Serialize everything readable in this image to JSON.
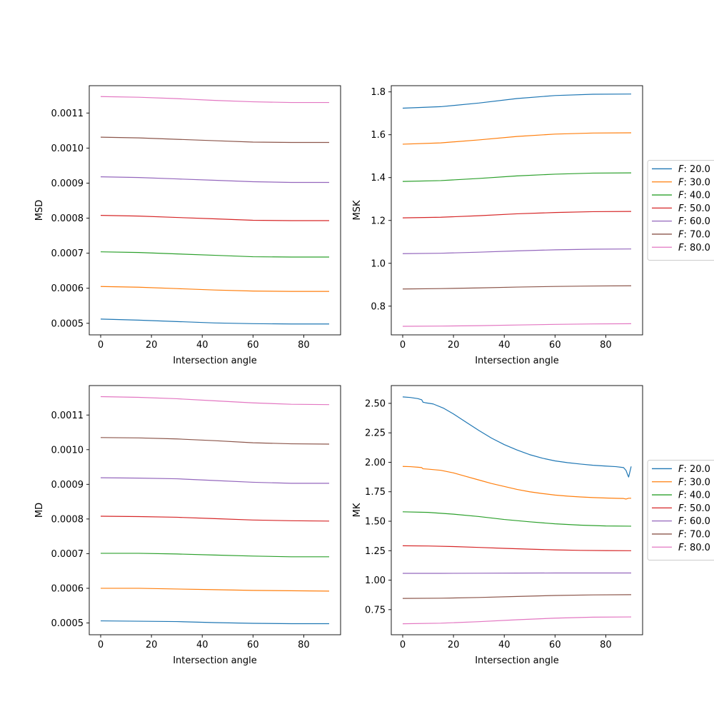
{
  "figure": {
    "background": "#ffffff"
  },
  "chart_data": [
    {
      "id": "msd",
      "type": "line",
      "title": "",
      "xlabel": "Intersection angle",
      "ylabel": "MSD",
      "xlim": [
        -4.5,
        94.5
      ],
      "ylim": [
        0.000467,
        0.001178
      ],
      "xticks": [
        0,
        20,
        40,
        60,
        80
      ],
      "xtick_labels": [
        "0",
        "20",
        "40",
        "60",
        "80"
      ],
      "yticks": [
        0.0005,
        0.0006,
        0.0007,
        0.0008,
        0.0009,
        0.001,
        0.0011
      ],
      "ytick_labels": [
        "0.0005",
        "0.0006",
        "0.0007",
        "0.0008",
        "0.0009",
        "0.0010",
        "0.0011"
      ],
      "legend": null,
      "series": [
        {
          "name": "$F: 20.0$",
          "color": "#1f77b4",
          "x": [
            0,
            15,
            30,
            45,
            60,
            75,
            90
          ],
          "values": [
            0.000512,
            0.000509,
            0.000505,
            0.000501,
            0.000499,
            0.000498,
            0.000498
          ]
        },
        {
          "name": "$F: 30.0$",
          "color": "#ff7f0e",
          "x": [
            0,
            15,
            30,
            45,
            60,
            75,
            90
          ],
          "values": [
            0.000605,
            0.000603,
            0.000599,
            0.000595,
            0.000592,
            0.000591,
            0.000591
          ]
        },
        {
          "name": "$F: 40.0$",
          "color": "#2ca02c",
          "x": [
            0,
            15,
            30,
            45,
            60,
            75,
            90
          ],
          "values": [
            0.000704,
            0.000702,
            0.000698,
            0.000694,
            0.00069,
            0.000689,
            0.000689
          ]
        },
        {
          "name": "$F: 50.0$",
          "color": "#d62728",
          "x": [
            0,
            15,
            30,
            45,
            60,
            75,
            90
          ],
          "values": [
            0.000808,
            0.000806,
            0.000802,
            0.000798,
            0.000794,
            0.000793,
            0.000793
          ]
        },
        {
          "name": "$F: 60.0$",
          "color": "#9467bd",
          "x": [
            0,
            15,
            30,
            45,
            60,
            75,
            90
          ],
          "values": [
            0.000918,
            0.000916,
            0.000912,
            0.000908,
            0.000904,
            0.000902,
            0.000902
          ]
        },
        {
          "name": "$F: 70.0$",
          "color": "#8c564b",
          "x": [
            0,
            15,
            30,
            45,
            60,
            75,
            90
          ],
          "values": [
            0.001031,
            0.001029,
            0.001025,
            0.001021,
            0.001017,
            0.001016,
            0.001016
          ]
        },
        {
          "name": "$F: 80.0$",
          "color": "#e377c2",
          "x": [
            0,
            15,
            30,
            45,
            60,
            75,
            90
          ],
          "values": [
            0.001147,
            0.001145,
            0.001141,
            0.001136,
            0.001132,
            0.00113,
            0.00113
          ]
        }
      ]
    },
    {
      "id": "msk",
      "type": "line",
      "title": "",
      "xlabel": "Intersection angle",
      "ylabel": "MSK",
      "xlim": [
        -4.5,
        94.5
      ],
      "ylim": [
        0.666,
        1.829
      ],
      "xticks": [
        0,
        20,
        40,
        60,
        80
      ],
      "xtick_labels": [
        "0",
        "20",
        "40",
        "60",
        "80"
      ],
      "yticks": [
        0.8,
        1.0,
        1.2,
        1.4,
        1.6,
        1.8
      ],
      "ytick_labels": [
        "0.8",
        "1.0",
        "1.2",
        "1.4",
        "1.6",
        "1.8"
      ],
      "legend": "center-left-outside",
      "series": [
        {
          "name": "$F: 20.0$",
          "color": "#1f77b4",
          "x": [
            0,
            15,
            30,
            45,
            60,
            75,
            90
          ],
          "values": [
            1.724,
            1.731,
            1.748,
            1.769,
            1.783,
            1.789,
            1.79
          ]
        },
        {
          "name": "$F: 30.0$",
          "color": "#ff7f0e",
          "x": [
            0,
            15,
            30,
            45,
            60,
            75,
            90
          ],
          "values": [
            1.556,
            1.562,
            1.576,
            1.592,
            1.603,
            1.608,
            1.609
          ]
        },
        {
          "name": "$F: 40.0$",
          "color": "#2ca02c",
          "x": [
            0,
            15,
            30,
            45,
            60,
            75,
            90
          ],
          "values": [
            1.382,
            1.386,
            1.396,
            1.408,
            1.416,
            1.421,
            1.422
          ]
        },
        {
          "name": "$F: 50.0$",
          "color": "#d62728",
          "x": [
            0,
            15,
            30,
            45,
            60,
            75,
            90
          ],
          "values": [
            1.212,
            1.215,
            1.222,
            1.231,
            1.237,
            1.241,
            1.242
          ]
        },
        {
          "name": "$F: 60.0$",
          "color": "#9467bd",
          "x": [
            0,
            15,
            30,
            45,
            60,
            75,
            90
          ],
          "values": [
            1.045,
            1.047,
            1.052,
            1.058,
            1.063,
            1.066,
            1.067
          ]
        },
        {
          "name": "$F: 70.0$",
          "color": "#8c564b",
          "x": [
            0,
            15,
            30,
            45,
            60,
            75,
            90
          ],
          "values": [
            0.88,
            0.882,
            0.885,
            0.889,
            0.892,
            0.894,
            0.895
          ]
        },
        {
          "name": "$F: 80.0$",
          "color": "#e377c2",
          "x": [
            0,
            15,
            30,
            45,
            60,
            75,
            90
          ],
          "values": [
            0.706,
            0.707,
            0.709,
            0.712,
            0.715,
            0.717,
            0.718
          ]
        }
      ]
    },
    {
      "id": "md",
      "type": "line",
      "title": "",
      "xlabel": "Intersection angle",
      "ylabel": "MD",
      "xlim": [
        -4.5,
        94.5
      ],
      "ylim": [
        0.000466,
        0.001185
      ],
      "xticks": [
        0,
        20,
        40,
        60,
        80
      ],
      "xtick_labels": [
        "0",
        "20",
        "40",
        "60",
        "80"
      ],
      "yticks": [
        0.0005,
        0.0006,
        0.0007,
        0.0008,
        0.0009,
        0.001,
        0.0011
      ],
      "ytick_labels": [
        "0.0005",
        "0.0006",
        "0.0007",
        "0.0008",
        "0.0009",
        "0.0010",
        "0.0011"
      ],
      "legend": null,
      "series": [
        {
          "name": "$F: 20.0$",
          "color": "#1f77b4",
          "x": [
            0,
            15,
            30,
            45,
            60,
            75,
            90
          ],
          "values": [
            0.000506,
            0.000505,
            0.000504,
            0.000501,
            0.000499,
            0.000498,
            0.000498
          ]
        },
        {
          "name": "$F: 30.0$",
          "color": "#ff7f0e",
          "x": [
            0,
            15,
            30,
            45,
            60,
            75,
            90
          ],
          "values": [
            0.0006,
            0.0006,
            0.000598,
            0.000596,
            0.000594,
            0.000593,
            0.000592
          ]
        },
        {
          "name": "$F: 40.0$",
          "color": "#2ca02c",
          "x": [
            0,
            15,
            30,
            45,
            60,
            75,
            90
          ],
          "values": [
            0.000701,
            0.000701,
            0.000699,
            0.000696,
            0.000693,
            0.000691,
            0.000691
          ]
        },
        {
          "name": "$F: 50.0$",
          "color": "#d62728",
          "x": [
            0,
            15,
            30,
            45,
            60,
            75,
            90
          ],
          "values": [
            0.000808,
            0.000807,
            0.000805,
            0.000801,
            0.000797,
            0.000795,
            0.000794
          ]
        },
        {
          "name": "$F: 60.0$",
          "color": "#9467bd",
          "x": [
            0,
            15,
            30,
            45,
            60,
            75,
            90
          ],
          "values": [
            0.000919,
            0.000918,
            0.000916,
            0.000911,
            0.000906,
            0.000903,
            0.000903
          ]
        },
        {
          "name": "$F: 70.0$",
          "color": "#8c564b",
          "x": [
            0,
            15,
            30,
            45,
            60,
            75,
            90
          ],
          "values": [
            0.001035,
            0.001034,
            0.001031,
            0.001026,
            0.00102,
            0.001017,
            0.001016
          ]
        },
        {
          "name": "$F: 80.0$",
          "color": "#e377c2",
          "x": [
            0,
            15,
            30,
            45,
            60,
            75,
            90
          ],
          "values": [
            0.001153,
            0.001151,
            0.001147,
            0.001141,
            0.001135,
            0.001131,
            0.00113
          ]
        }
      ]
    },
    {
      "id": "mk",
      "type": "line",
      "title": "",
      "xlabel": "Intersection angle",
      "ylabel": "MK",
      "xlim": [
        -4.5,
        94.5
      ],
      "ylim": [
        0.537,
        2.651
      ],
      "xticks": [
        0,
        20,
        40,
        60,
        80
      ],
      "xtick_labels": [
        "0",
        "20",
        "40",
        "60",
        "80"
      ],
      "yticks": [
        0.75,
        1.0,
        1.25,
        1.5,
        1.75,
        2.0,
        2.25,
        2.5
      ],
      "ytick_labels": [
        "0.75",
        "1.00",
        "1.25",
        "1.50",
        "1.75",
        "2.00",
        "2.25",
        "2.50"
      ],
      "legend": "center-left-outside",
      "series": [
        {
          "name": "$F: 20.0$",
          "color": "#1f77b4",
          "x": [
            0,
            3,
            6,
            7.5,
            8,
            9,
            12,
            16,
            20,
            25,
            30,
            35,
            40,
            45,
            50,
            55,
            60,
            65,
            70,
            75,
            80,
            84,
            87,
            88,
            88.5,
            89,
            89.5,
            90
          ],
          "values": [
            2.555,
            2.55,
            2.54,
            2.53,
            2.51,
            2.505,
            2.495,
            2.46,
            2.41,
            2.34,
            2.27,
            2.205,
            2.15,
            2.105,
            2.065,
            2.035,
            2.012,
            1.997,
            1.985,
            1.975,
            1.968,
            1.963,
            1.955,
            1.93,
            1.9,
            1.875,
            1.92,
            1.965
          ]
        },
        {
          "name": "$F: 30.0$",
          "color": "#ff7f0e",
          "x": [
            0,
            3,
            6,
            7.5,
            8,
            10,
            15,
            20,
            25,
            30,
            35,
            40,
            45,
            50,
            55,
            60,
            65,
            70,
            75,
            80,
            85,
            87,
            88,
            89,
            90
          ],
          "values": [
            1.965,
            1.963,
            1.958,
            1.955,
            1.945,
            1.942,
            1.932,
            1.91,
            1.88,
            1.85,
            1.82,
            1.795,
            1.77,
            1.75,
            1.735,
            1.722,
            1.713,
            1.706,
            1.701,
            1.697,
            1.694,
            1.693,
            1.688,
            1.695,
            1.695
          ]
        },
        {
          "name": "$F: 40.0$",
          "color": "#2ca02c",
          "x": [
            0,
            10,
            20,
            30,
            40,
            50,
            60,
            70,
            80,
            90
          ],
          "values": [
            1.58,
            1.575,
            1.56,
            1.54,
            1.515,
            1.495,
            1.478,
            1.467,
            1.46,
            1.458
          ]
        },
        {
          "name": "$F: 50.0$",
          "color": "#d62728",
          "x": [
            0,
            10,
            20,
            30,
            40,
            50,
            60,
            70,
            80,
            90
          ],
          "values": [
            1.292,
            1.29,
            1.285,
            1.278,
            1.27,
            1.263,
            1.257,
            1.253,
            1.251,
            1.25
          ]
        },
        {
          "name": "$F: 60.0$",
          "color": "#9467bd",
          "x": [
            0,
            15,
            30,
            45,
            60,
            75,
            90
          ],
          "values": [
            1.058,
            1.058,
            1.059,
            1.06,
            1.061,
            1.061,
            1.061
          ]
        },
        {
          "name": "$F: 70.0$",
          "color": "#8c564b",
          "x": [
            0,
            15,
            30,
            45,
            60,
            75,
            90
          ],
          "values": [
            0.845,
            0.847,
            0.853,
            0.862,
            0.87,
            0.875,
            0.877
          ]
        },
        {
          "name": "$F: 80.0$",
          "color": "#e377c2",
          "x": [
            0,
            15,
            30,
            45,
            60,
            75,
            90
          ],
          "values": [
            0.63,
            0.635,
            0.648,
            0.664,
            0.678,
            0.686,
            0.688
          ]
        }
      ]
    }
  ]
}
